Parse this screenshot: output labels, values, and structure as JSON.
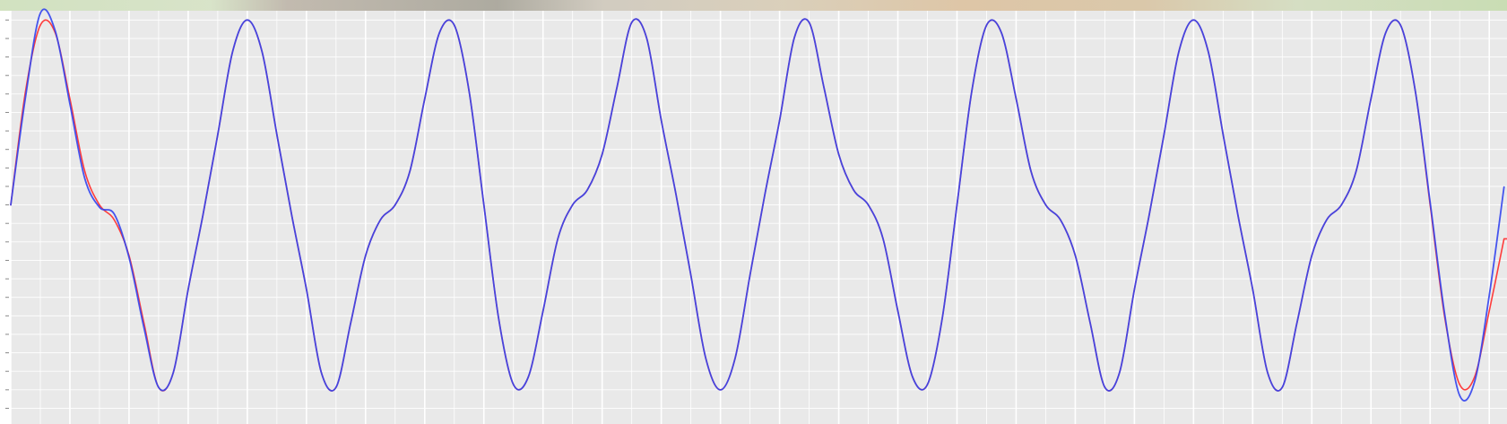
{
  "chart_data": {
    "type": "line",
    "title": "",
    "xlabel": "",
    "ylabel": "",
    "grid": true,
    "legend": "none",
    "xlim": [
      0,
      5.06
    ],
    "ylim": [
      -1.185,
      1.05
    ],
    "series": [
      {
        "color": "#ff3333",
        "x": [
          0.0,
          0.05,
          0.1,
          0.15,
          0.2,
          0.25,
          0.3,
          0.35,
          0.4,
          0.45,
          0.5,
          0.55,
          0.6,
          0.65,
          0.7,
          0.75,
          0.8,
          0.85,
          0.9,
          0.95,
          1.0,
          1.05,
          1.1,
          1.15,
          1.2,
          1.25,
          1.3,
          1.35,
          1.4,
          1.45,
          1.5,
          1.55,
          1.6,
          1.65,
          1.7,
          1.75,
          1.8,
          1.85,
          1.9,
          1.95,
          2.0,
          2.05,
          2.1,
          2.15,
          2.2,
          2.25,
          2.3,
          2.35,
          2.4,
          2.45,
          2.5,
          2.55,
          2.6,
          2.65,
          2.7,
          2.75,
          2.8,
          2.85,
          2.9,
          2.95,
          3.0,
          3.05,
          3.1,
          3.15,
          3.2,
          3.25,
          3.3,
          3.35,
          3.4,
          3.45,
          3.5,
          3.55,
          3.6,
          3.65,
          3.7,
          3.75,
          3.8,
          3.85,
          3.9,
          3.95,
          4.0,
          4.05,
          4.1,
          4.15,
          4.2,
          4.25,
          4.3,
          4.35,
          4.4,
          4.45,
          4.5,
          4.55,
          4.6,
          4.65,
          4.7,
          4.75,
          4.8,
          4.85,
          4.9,
          4.95,
          5.0,
          5.05
        ],
        "y": [
          0.0,
          0.6149,
          0.9718,
          0.9318,
          0.5741,
          0.1835,
          -0.0,
          -0.0813,
          -0.2738,
          -0.6354,
          -0.9867,
          -0.9048,
          -0.4567,
          -0.0544,
          0.3801,
          0.8271,
          1.0,
          0.8271,
          0.3801,
          -0.0544,
          -0.4567,
          -0.9048,
          -0.9867,
          -0.6354,
          -0.2738,
          -0.0813,
          0.0,
          0.1835,
          0.5741,
          0.9318,
          0.9718,
          0.6149,
          0.0,
          -0.6149,
          -0.9718,
          -0.9318,
          -0.5741,
          -0.1835,
          0.0,
          0.0813,
          0.2738,
          0.6354,
          0.9867,
          0.9048,
          0.4567,
          0.0544,
          -0.3801,
          -0.8271,
          -1.0,
          -0.8271,
          -0.3801,
          0.0544,
          0.4567,
          0.9048,
          0.9867,
          0.6354,
          0.2738,
          0.0813,
          0.0,
          -0.1835,
          -0.5741,
          -0.9318,
          -0.9718,
          -0.6149,
          0.0,
          0.6149,
          0.9718,
          0.9318,
          0.5741,
          0.1835,
          -0.0,
          -0.0813,
          -0.2738,
          -0.6354,
          -0.9867,
          -0.9048,
          -0.4567,
          -0.0544,
          0.3801,
          0.8271,
          1.0,
          0.8271,
          0.3801,
          -0.0544,
          -0.4567,
          -0.9048,
          -0.9867,
          -0.6354,
          -0.2738,
          -0.0813,
          0.0,
          0.1835,
          0.5741,
          0.9318,
          0.9718,
          0.6149,
          0.0,
          -0.6149,
          -0.9718,
          -0.9318,
          -0.5741,
          -0.1835
        ]
      },
      {
        "color": "#3344ee",
        "x": [
          0.0,
          0.05,
          0.1,
          0.15,
          0.2,
          0.25,
          0.3,
          0.35,
          0.4,
          0.45,
          0.5,
          0.55,
          0.6,
          0.65,
          0.7,
          0.75,
          0.8,
          0.85,
          0.9,
          0.95,
          1.0,
          1.05,
          1.1,
          1.15,
          1.2,
          1.25,
          1.3,
          1.35,
          1.4,
          1.45,
          1.5,
          1.55,
          1.6,
          1.65,
          1.7,
          1.75,
          1.8,
          1.85,
          1.9,
          1.95,
          2.0,
          2.05,
          2.1,
          2.15,
          2.2,
          2.25,
          2.3,
          2.35,
          2.4,
          2.45,
          2.5,
          2.55,
          2.6,
          2.65,
          2.7,
          2.75,
          2.8,
          2.85,
          2.9,
          2.95,
          3.0,
          3.05,
          3.1,
          3.15,
          3.2,
          3.25,
          3.3,
          3.35,
          3.4,
          3.45,
          3.5,
          3.55,
          3.6,
          3.65,
          3.7,
          3.75,
          3.8,
          3.85,
          3.9,
          3.95,
          4.0,
          4.05,
          4.1,
          4.15,
          4.2,
          4.25,
          4.3,
          4.35,
          4.4,
          4.45,
          4.5,
          4.55,
          4.6,
          4.65,
          4.7,
          4.75,
          4.8,
          4.85,
          4.9,
          4.95,
          5.0,
          5.05
        ],
        "y": [
          0.0,
          0.5839,
          1.0363,
          0.9431,
          0.5459,
          0.1449,
          -0.0125,
          -0.0497,
          -0.2848,
          -0.6602,
          -0.9867,
          -0.9048,
          -0.4567,
          -0.0544,
          0.3801,
          0.8271,
          1.0,
          0.8271,
          0.3801,
          -0.0544,
          -0.4567,
          -0.9048,
          -0.9867,
          -0.6354,
          -0.2738,
          -0.0813,
          0.0,
          0.1835,
          0.5741,
          0.9318,
          0.9718,
          0.6149,
          0.0,
          -0.6149,
          -0.9718,
          -0.9318,
          -0.5741,
          -0.1835,
          0.0,
          0.0813,
          0.2738,
          0.6354,
          0.9867,
          0.9048,
          0.4567,
          0.0544,
          -0.3801,
          -0.8271,
          -1.0,
          -0.8271,
          -0.3801,
          0.0544,
          0.4567,
          0.9048,
          0.9867,
          0.6354,
          0.2738,
          0.0813,
          0.0,
          -0.1835,
          -0.5741,
          -0.9318,
          -0.9718,
          -0.6149,
          0.0,
          0.6149,
          0.9718,
          0.9318,
          0.5741,
          0.1835,
          -0.0,
          -0.0813,
          -0.2738,
          -0.6354,
          -0.9867,
          -0.9048,
          -0.4567,
          -0.0544,
          0.3801,
          0.8271,
          1.0,
          0.8271,
          0.3801,
          -0.0544,
          -0.4567,
          -0.9048,
          -0.9867,
          -0.6354,
          -0.2738,
          -0.0813,
          0.0,
          0.1835,
          0.5741,
          0.9318,
          0.9718,
          0.6149,
          0.0152,
          -0.5982,
          -1.0312,
          -0.9586,
          -0.4895,
          0.0967
        ]
      }
    ]
  }
}
